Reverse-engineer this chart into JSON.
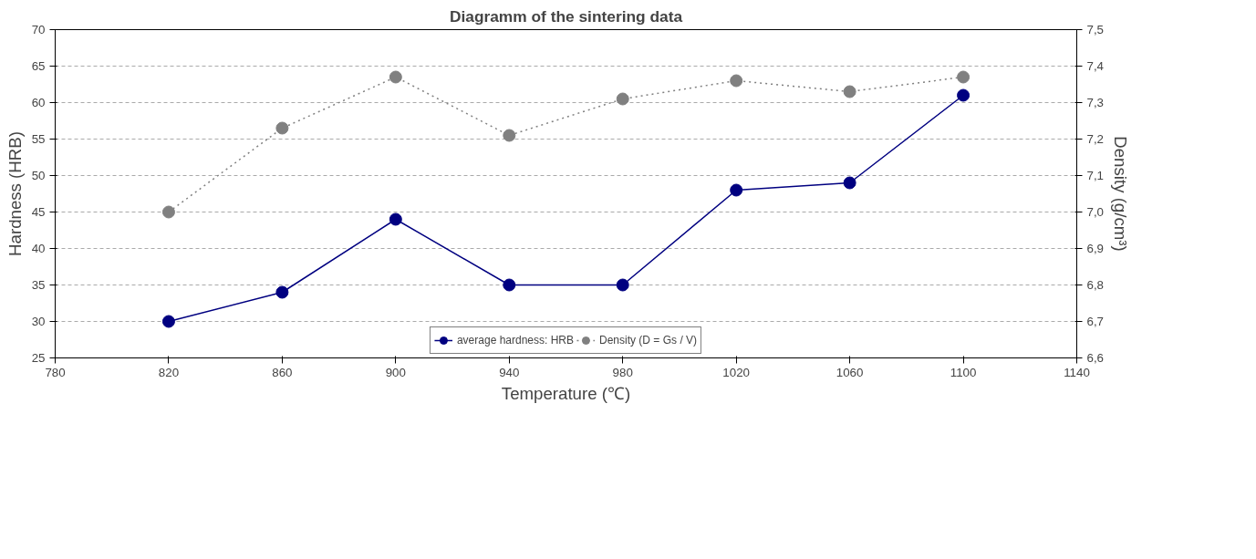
{
  "chart_data": {
    "type": "line",
    "title": "Diagramm of the sintering data",
    "xlabel": "Temperature (℃)",
    "ylabel": "Hardness (HRB)",
    "y2label": "Density (g/cm³)",
    "x": [
      820,
      860,
      900,
      940,
      980,
      1020,
      1060,
      1100
    ],
    "series": [
      {
        "name": "average hardness: HRB",
        "color": "#000080",
        "line_style": "solid",
        "values": [
          30,
          34,
          44,
          35,
          35,
          48,
          49,
          61
        ]
      },
      {
        "name": "Density (D = Gs / V)",
        "color": "#808080",
        "line_style": "dotted",
        "axis": "y2",
        "values": [
          7.0,
          7.23,
          7.37,
          7.21,
          7.31,
          7.36,
          7.33,
          7.37
        ]
      }
    ],
    "xlim": [
      780,
      1140
    ],
    "xticks": [
      780,
      820,
      860,
      900,
      940,
      980,
      1020,
      1060,
      1100,
      1140
    ],
    "ylim": [
      25,
      70
    ],
    "yticks": [
      25,
      30,
      35,
      40,
      45,
      50,
      55,
      60,
      65,
      70
    ],
    "y2lim": [
      6.6,
      7.5
    ],
    "y2ticks": [
      {
        "value": 6.6,
        "label": "6,6"
      },
      {
        "value": 6.7,
        "label": "6,7"
      },
      {
        "value": 6.8,
        "label": "6,8"
      },
      {
        "value": 6.9,
        "label": "6,9"
      },
      {
        "value": 7.0,
        "label": "7,0"
      },
      {
        "value": 7.1,
        "label": "7,1"
      },
      {
        "value": 7.2,
        "label": "7,2"
      },
      {
        "value": 7.3,
        "label": "7,3"
      },
      {
        "value": 7.4,
        "label": "7,4"
      },
      {
        "value": 7.5,
        "label": "7,5"
      }
    ],
    "grid": "y",
    "legend": "bottom",
    "marker": "circle"
  }
}
